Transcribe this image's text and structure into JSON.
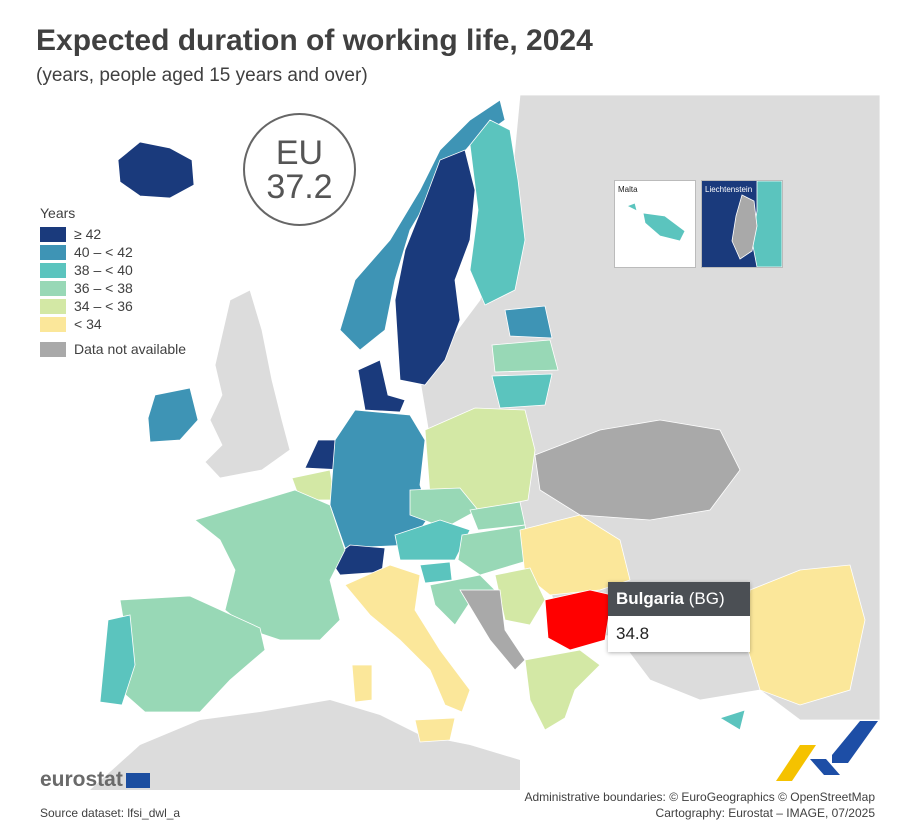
{
  "title": "Expected duration of working life, 2024",
  "subtitle": "(years, people aged 15 years and over)",
  "eu": {
    "label": "EU",
    "value": "37.2"
  },
  "legend": {
    "title": "Years",
    "classes": [
      {
        "label": "≥ 42",
        "color": "#1a3a7c"
      },
      {
        "label": "40 – < 42",
        "color": "#3e94b5"
      },
      {
        "label": "38 – < 40",
        "color": "#5bc4be"
      },
      {
        "label": "36 – < 38",
        "color": "#98d8b6"
      },
      {
        "label": "34 – < 36",
        "color": "#d3e8a5"
      },
      {
        "label": "< 34",
        "color": "#fbe79a"
      }
    ],
    "na": {
      "label": "Data not available",
      "color": "#a9a9a9"
    }
  },
  "insets": {
    "malta": "Malta",
    "liechtenstein": "Liechtenstein"
  },
  "tooltip": {
    "country": "Bulgaria",
    "code": "(BG)",
    "value": "34.8",
    "highlight_color": "#ff0000"
  },
  "branding": {
    "logo": "eurostat"
  },
  "source": "Source dataset: lfsi_dwl_a",
  "credits": {
    "line1": "Administrative boundaries: © EuroGeographics © OpenStreetMap",
    "line2": "Cartography: Eurostat – IMAGE, 07/2025"
  }
}
